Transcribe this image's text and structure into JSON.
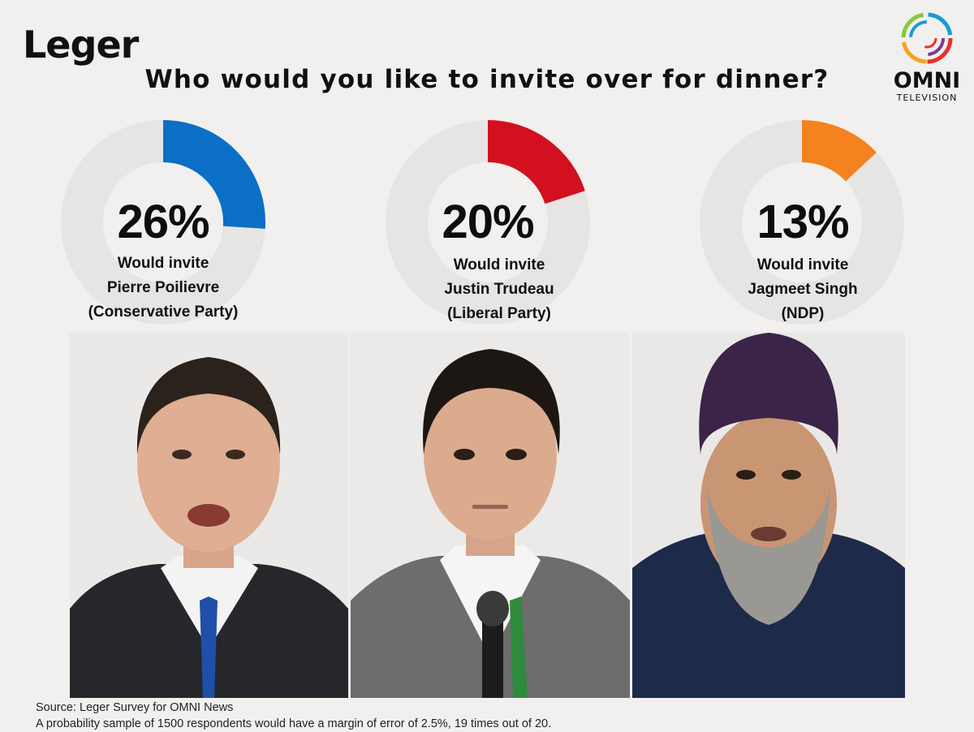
{
  "header": {
    "leger_logo": "Leger",
    "omni_logo": "OMNI",
    "omni_sub": "TELEVISION",
    "title": "Who would you like to invite over for dinner?"
  },
  "chart_data": {
    "type": "pie",
    "title": "Who would you like to invite over for dinner?",
    "charts": [
      {
        "value": 26,
        "value_label": "26%",
        "line1": "Would invite",
        "line2": "Pierre Poilievre",
        "line3": "(Conservative Party)",
        "color": "#0b6fc5"
      },
      {
        "value": 20,
        "value_label": "20%",
        "line1": "Would invite",
        "line2": "Justin Trudeau",
        "line3": "(Liberal Party)",
        "color": "#d3101f"
      },
      {
        "value": 13,
        "value_label": "13%",
        "line1": "Would invite",
        "line2": "Jagmeet Singh",
        "line3": "(NDP)",
        "color": "#f4821f"
      }
    ],
    "track_color": "#e6e5e3"
  },
  "photos": [
    {
      "icon": "person-photo",
      "suit": "#25272b",
      "tie": "#1f4fa8",
      "hair": "#2b221c"
    },
    {
      "icon": "person-photo",
      "suit": "#6d6d6b",
      "tie": "#2e8a3c",
      "hair": "#1d1713"
    },
    {
      "icon": "person-photo",
      "suit": "#1e2a4a",
      "turban": "#3b2447",
      "beard": "#9a9893"
    }
  ],
  "footer": {
    "source": "Source: Leger Survey for OMNI News",
    "note": "A probability sample of 1500 respondents would have a margin of error of 2.5%, 19 times out of 20."
  }
}
